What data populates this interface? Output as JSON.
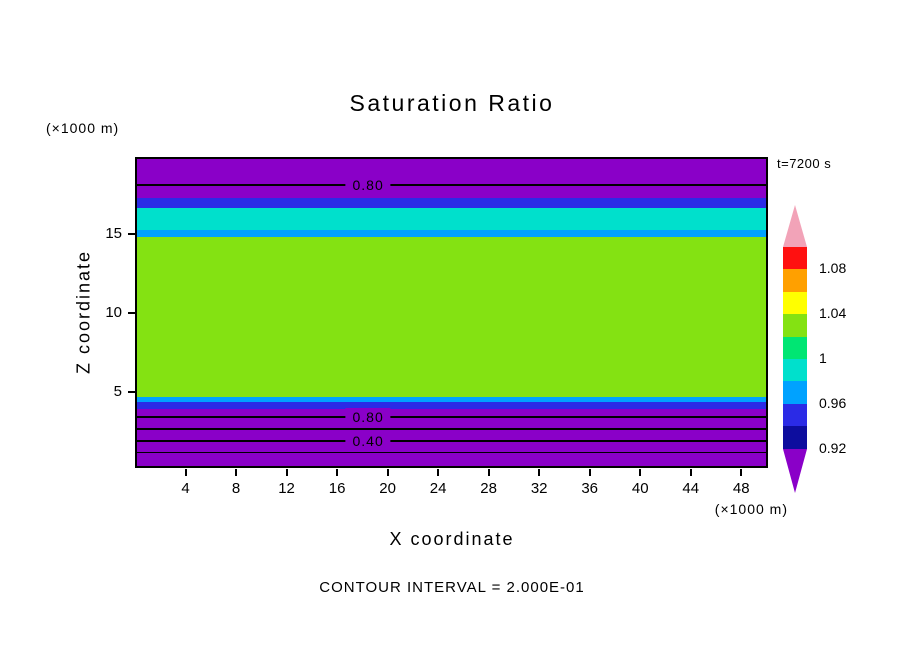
{
  "page": {
    "title": "Saturation Ratio",
    "time_label": "t=7200 s",
    "y_axis_unit": "(×1000 m)",
    "x_axis_unit": "(×1000 m)",
    "y_axis_title": "Z coordinate",
    "x_axis_title": "X coordinate",
    "footer_note": "CONTOUR INTERVAL = 2.000E-01"
  },
  "chart_data": {
    "type": "heatmap",
    "subtype": "filled-contour",
    "title": "Saturation Ratio",
    "xlabel": "X coordinate",
    "ylabel": "Z coordinate",
    "x_unit": "(×1000 m)",
    "y_unit": "(×1000 m)",
    "time_annotation": "t=7200 s",
    "contour_interval_note": "CONTOUR INTERVAL = 2.000E-01",
    "contour_interval": 0.2,
    "x_range": [
      0,
      49.8
    ],
    "y_range": [
      0.4,
      19.9
    ],
    "x_ticks": [
      4,
      8,
      12,
      16,
      20,
      24,
      28,
      32,
      36,
      40,
      44,
      48
    ],
    "y_ticks": [
      5,
      10,
      15
    ],
    "grid": false,
    "legend_position": "right-colorbar",
    "bands": [
      {
        "color": "purple",
        "z_top": 19.9,
        "z_bottom": 17.4
      },
      {
        "color": "blue",
        "z_top": 17.4,
        "z_bottom": 16.8
      },
      {
        "color": "cyan",
        "z_top": 16.8,
        "z_bottom": 15.4
      },
      {
        "color": "skyblue",
        "z_top": 15.4,
        "z_bottom": 14.95
      },
      {
        "color": "green",
        "z_top": 14.95,
        "z_bottom": 4.8
      },
      {
        "color": "skyblue",
        "z_top": 4.8,
        "z_bottom": 4.45
      },
      {
        "color": "blue",
        "z_top": 4.45,
        "z_bottom": 4.0
      },
      {
        "color": "purple",
        "z_top": 4.0,
        "z_bottom": 0.4
      }
    ],
    "contours": [
      {
        "value": "0.80",
        "z": 18.25,
        "labeled": true,
        "label_x": 18.3,
        "label_bg": "purple"
      },
      {
        "value": "0.80",
        "z": 3.5,
        "labeled": true,
        "label_x": 18.3,
        "label_bg": "purple"
      },
      {
        "value": "0.60",
        "z": 2.75,
        "labeled": false
      },
      {
        "value": "0.40",
        "z": 2.0,
        "labeled": true,
        "label_x": 18.3,
        "label_bg": "purple"
      },
      {
        "value": "0.20",
        "z": 1.25,
        "labeled": false
      }
    ],
    "palette": {
      "purple": "#8A00C8",
      "navy": "#0D0D9E",
      "blue": "#2B2BE6",
      "skyblue": "#00A2FF",
      "cyan": "#00E0CC",
      "springgreen": "#00E673",
      "green": "#84E212",
      "yellow": "#FFFF00",
      "orange": "#FFA000",
      "red": "#FF1010",
      "pink": "#F2A3B8"
    },
    "colorbar": {
      "arrow_top_color": "pink",
      "arrow_bottom_color": "purple",
      "arrow_height": 42,
      "segment_height": 22.4,
      "labels_top_to_bottom": [
        "1.08",
        "1.04",
        "1",
        "0.96",
        "0.92"
      ],
      "segments": [
        {
          "color": "red",
          "label": "1.08"
        },
        {
          "color": "orange"
        },
        {
          "color": "yellow",
          "label": "1.04"
        },
        {
          "color": "green"
        },
        {
          "color": "springgreen",
          "label": "1"
        },
        {
          "color": "cyan"
        },
        {
          "color": "skyblue",
          "label": "0.96"
        },
        {
          "color": "blue"
        },
        {
          "color": "navy",
          "label": "0.92"
        }
      ]
    }
  }
}
